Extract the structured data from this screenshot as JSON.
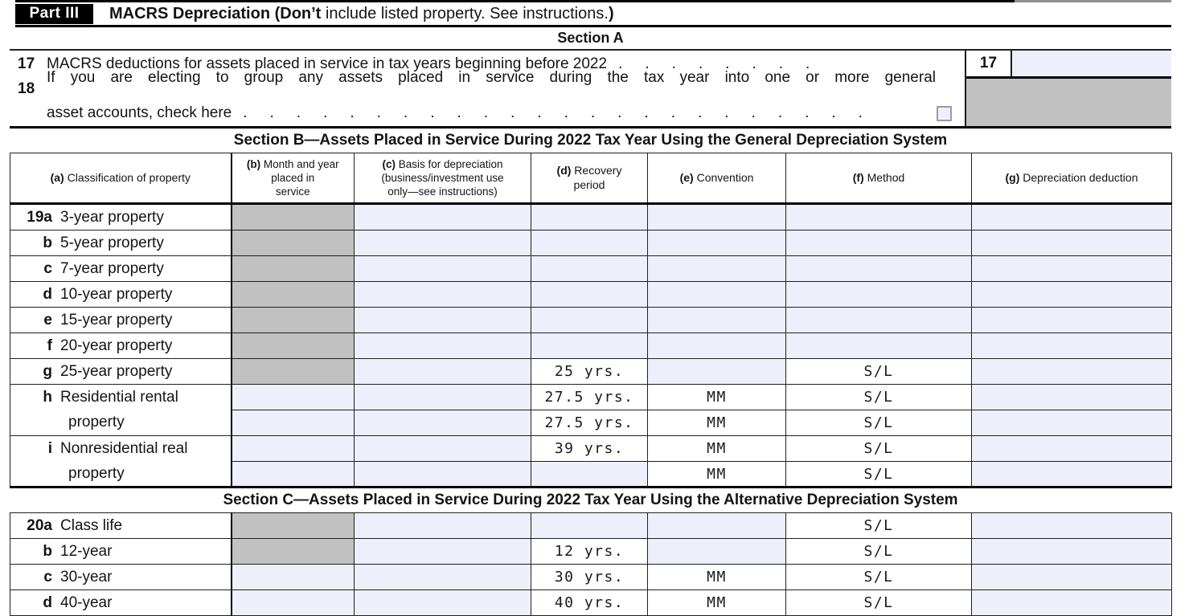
{
  "colors": {
    "entry_field": "#edf0fa",
    "shaded_cell": "#c1c1c1",
    "header_bar": "#000000"
  },
  "part_header": {
    "badge": "Part III",
    "title_bold": "MACRS Depreciation (Don’t",
    "title_regular": " include listed property. See instructions.",
    "title_bold_close": ")"
  },
  "section_a": {
    "heading": "Section A",
    "line17": {
      "num": "17",
      "text": "MACRS deductions for assets placed in service in tax years beginning before 2022",
      "dots": "........",
      "box_label": "17",
      "field_value": ""
    },
    "line18": {
      "num": "18",
      "text_line1": "If you are electing to group any assets placed in service during the tax year into one or more general",
      "text_line2": "asset accounts, check here",
      "dots": "........................",
      "checkbox_checked": false
    }
  },
  "section_b": {
    "heading": "Section B—Assets Placed in Service During 2022 Tax Year Using the General Depreciation System",
    "columns": [
      {
        "id": "a",
        "prefix": "(a)",
        "lines": [
          "Classification of property"
        ],
        "small": false
      },
      {
        "id": "b",
        "prefix": "(b)",
        "lines": [
          "Month and year",
          "placed in",
          "service"
        ],
        "small": true
      },
      {
        "id": "c",
        "prefix": "(c)",
        "lines": [
          "Basis for depreciation",
          "(business/investment use",
          "only—see instructions)"
        ],
        "small": true
      },
      {
        "id": "d",
        "prefix": "(d)",
        "lines": [
          "Recovery",
          "period"
        ],
        "small": false
      },
      {
        "id": "e",
        "prefix": "(e)",
        "lines": [
          "Convention"
        ],
        "small": false
      },
      {
        "id": "f",
        "prefix": "(f)",
        "lines": [
          "Method"
        ],
        "small": false
      },
      {
        "id": "g",
        "prefix": "(g)",
        "lines": [
          "Depreciation deduction"
        ],
        "small": false
      }
    ],
    "rows": [
      {
        "id": "19a",
        "num": "19a",
        "label": "3-year property",
        "cells": [
          {
            "c": "b",
            "t": "gray"
          },
          {
            "c": "c",
            "t": "in"
          },
          {
            "c": "d",
            "t": "in"
          },
          {
            "c": "e",
            "t": "in"
          },
          {
            "c": "f",
            "t": "in"
          },
          {
            "c": "g",
            "t": "in"
          }
        ]
      },
      {
        "id": "19b",
        "num": "b",
        "label": "5-year property",
        "cells": [
          {
            "c": "b",
            "t": "gray"
          },
          {
            "c": "c",
            "t": "in"
          },
          {
            "c": "d",
            "t": "in"
          },
          {
            "c": "e",
            "t": "in"
          },
          {
            "c": "f",
            "t": "in"
          },
          {
            "c": "g",
            "t": "in"
          }
        ]
      },
      {
        "id": "19c",
        "num": "c",
        "label": "7-year property",
        "cells": [
          {
            "c": "b",
            "t": "gray"
          },
          {
            "c": "c",
            "t": "in"
          },
          {
            "c": "d",
            "t": "in"
          },
          {
            "c": "e",
            "t": "in"
          },
          {
            "c": "f",
            "t": "in"
          },
          {
            "c": "g",
            "t": "in"
          }
        ]
      },
      {
        "id": "19d",
        "num": "d",
        "label": "10-year property",
        "cells": [
          {
            "c": "b",
            "t": "gray"
          },
          {
            "c": "c",
            "t": "in"
          },
          {
            "c": "d",
            "t": "in"
          },
          {
            "c": "e",
            "t": "in"
          },
          {
            "c": "f",
            "t": "in"
          },
          {
            "c": "g",
            "t": "in"
          }
        ]
      },
      {
        "id": "19e",
        "num": "e",
        "label": "15-year property",
        "cells": [
          {
            "c": "b",
            "t": "gray"
          },
          {
            "c": "c",
            "t": "in"
          },
          {
            "c": "d",
            "t": "in"
          },
          {
            "c": "e",
            "t": "in"
          },
          {
            "c": "f",
            "t": "in"
          },
          {
            "c": "g",
            "t": "in"
          }
        ]
      },
      {
        "id": "19f",
        "num": "f",
        "label": "20-year property",
        "cells": [
          {
            "c": "b",
            "t": "gray"
          },
          {
            "c": "c",
            "t": "in"
          },
          {
            "c": "d",
            "t": "in"
          },
          {
            "c": "e",
            "t": "in"
          },
          {
            "c": "f",
            "t": "in"
          },
          {
            "c": "g",
            "t": "in"
          }
        ]
      },
      {
        "id": "19g",
        "num": "g",
        "label": "25-year property",
        "cells": [
          {
            "c": "b",
            "t": "gray"
          },
          {
            "c": "c",
            "t": "in"
          },
          {
            "c": "d",
            "t": "val",
            "v": "25 yrs."
          },
          {
            "c": "e",
            "t": "in"
          },
          {
            "c": "f",
            "t": "val",
            "v": "S/L"
          },
          {
            "c": "g",
            "t": "in"
          }
        ]
      },
      {
        "id": "19h",
        "num": "h",
        "label": "Residential rental",
        "label2": "property",
        "rowspan": 2,
        "cells": [
          {
            "c": "b",
            "t": "in"
          },
          {
            "c": "c",
            "t": "in"
          },
          {
            "c": "d",
            "t": "val",
            "v": "27.5 yrs."
          },
          {
            "c": "e",
            "t": "val",
            "v": "MM"
          },
          {
            "c": "f",
            "t": "val",
            "v": "S/L"
          },
          {
            "c": "g",
            "t": "in"
          }
        ]
      },
      {
        "id": "19h2",
        "cells": [
          {
            "c": "b",
            "t": "in"
          },
          {
            "c": "c",
            "t": "in"
          },
          {
            "c": "d",
            "t": "val",
            "v": "27.5 yrs."
          },
          {
            "c": "e",
            "t": "val",
            "v": "MM"
          },
          {
            "c": "f",
            "t": "val",
            "v": "S/L"
          },
          {
            "c": "g",
            "t": "in"
          }
        ]
      },
      {
        "id": "19i",
        "num": "i",
        "label": "Nonresidential real",
        "label2": "property",
        "rowspan": 2,
        "cells": [
          {
            "c": "b",
            "t": "in"
          },
          {
            "c": "c",
            "t": "in"
          },
          {
            "c": "d",
            "t": "val",
            "v": "39 yrs."
          },
          {
            "c": "e",
            "t": "val",
            "v": "MM"
          },
          {
            "c": "f",
            "t": "val",
            "v": "S/L"
          },
          {
            "c": "g",
            "t": "in"
          }
        ]
      },
      {
        "id": "19i2",
        "cells": [
          {
            "c": "b",
            "t": "in"
          },
          {
            "c": "c",
            "t": "in"
          },
          {
            "c": "d",
            "t": "in"
          },
          {
            "c": "e",
            "t": "val",
            "v": "MM"
          },
          {
            "c": "f",
            "t": "val",
            "v": "S/L"
          },
          {
            "c": "g",
            "t": "in"
          }
        ]
      }
    ]
  },
  "section_c": {
    "heading": "Section C—Assets Placed in Service During 2022 Tax Year Using the Alternative Depreciation System",
    "rows": [
      {
        "id": "20a",
        "num": "20a",
        "label": "Class life",
        "cells": [
          {
            "c": "b",
            "t": "gray"
          },
          {
            "c": "c",
            "t": "in"
          },
          {
            "c": "d",
            "t": "in"
          },
          {
            "c": "e",
            "t": "in"
          },
          {
            "c": "f",
            "t": "val",
            "v": "S/L"
          },
          {
            "c": "g",
            "t": "in"
          }
        ]
      },
      {
        "id": "20b",
        "num": "b",
        "label": "12-year",
        "cells": [
          {
            "c": "b",
            "t": "gray"
          },
          {
            "c": "c",
            "t": "in"
          },
          {
            "c": "d",
            "t": "val",
            "v": "12 yrs."
          },
          {
            "c": "e",
            "t": "in"
          },
          {
            "c": "f",
            "t": "val",
            "v": "S/L"
          },
          {
            "c": "g",
            "t": "in"
          }
        ]
      },
      {
        "id": "20c",
        "num": "c",
        "label": "30-year",
        "cells": [
          {
            "c": "b",
            "t": "in"
          },
          {
            "c": "c",
            "t": "in"
          },
          {
            "c": "d",
            "t": "val",
            "v": "30 yrs."
          },
          {
            "c": "e",
            "t": "val",
            "v": "MM"
          },
          {
            "c": "f",
            "t": "val",
            "v": "S/L"
          },
          {
            "c": "g",
            "t": "in"
          }
        ]
      },
      {
        "id": "20d",
        "num": "d",
        "label": "40-year",
        "cells": [
          {
            "c": "b",
            "t": "in"
          },
          {
            "c": "c",
            "t": "in"
          },
          {
            "c": "d",
            "t": "val",
            "v": "40 yrs."
          },
          {
            "c": "e",
            "t": "val",
            "v": "MM"
          },
          {
            "c": "f",
            "t": "val",
            "v": "S/L"
          },
          {
            "c": "g",
            "t": "in"
          }
        ]
      }
    ]
  }
}
